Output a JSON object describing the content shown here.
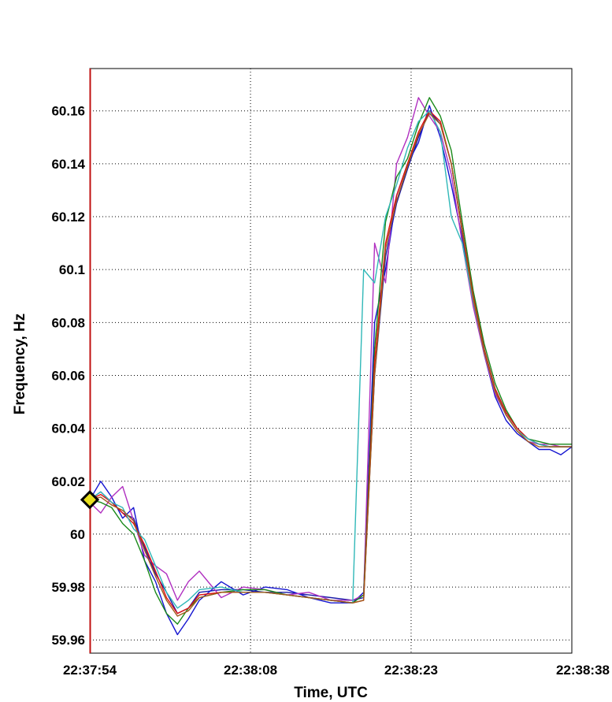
{
  "chart_data": {
    "type": "line",
    "title": "",
    "xlabel": "Time, UTC",
    "ylabel": "Frequency, Hz",
    "x_unit": "seconds after 22:37:54",
    "xlim": [
      0,
      44
    ],
    "ylim": [
      59.955,
      60.176
    ],
    "xticks": [
      {
        "value": 0,
        "label": "22:37:54"
      },
      {
        "value": 14.67,
        "label": "22:38:08"
      },
      {
        "value": 29.33,
        "label": "22:38:23"
      },
      {
        "value": 44,
        "label": "22:38:38"
      }
    ],
    "yticks": [
      59.96,
      59.98,
      60,
      60.02,
      60.04,
      60.06,
      60.08,
      60.1,
      60.12,
      60.14,
      60.16
    ],
    "ytick_labels": [
      "59.96",
      "59.98",
      "60",
      "60.02",
      "60.04",
      "60.06",
      "60.08",
      "60.1",
      "60.12",
      "60.14",
      "60.16"
    ],
    "grid": "dotted",
    "legend": "none",
    "series_colors": [
      "#1a1aa8",
      "#1414d0",
      "#b030c0",
      "#1a8a1a",
      "#e01010",
      "#30b8b8",
      "#a05a1a"
    ],
    "x": [
      0,
      1,
      2,
      3,
      4,
      5,
      6,
      7,
      8,
      9,
      10,
      12,
      14,
      16,
      18,
      20,
      22,
      24,
      25,
      26,
      27,
      28,
      29,
      30,
      31,
      32,
      33,
      34,
      35,
      36,
      37,
      38,
      39,
      40,
      41,
      42,
      43,
      44
    ],
    "series": [
      {
        "values": [
          60.013,
          60.016,
          60.012,
          60.008,
          60.006,
          59.995,
          59.985,
          59.978,
          59.97,
          59.972,
          59.978,
          59.979,
          59.979,
          59.978,
          59.978,
          59.977,
          59.976,
          59.975,
          59.976,
          60.06,
          60.105,
          60.125,
          60.138,
          60.15,
          60.16,
          60.155,
          60.14,
          60.115,
          60.09,
          60.07,
          60.055,
          60.046,
          60.04,
          60.036,
          60.034,
          60.033,
          60.033,
          60.033
        ]
      },
      {
        "values": [
          60.013,
          60.02,
          60.014,
          60.006,
          60.01,
          59.99,
          59.982,
          59.97,
          59.962,
          59.968,
          59.975,
          59.982,
          59.977,
          59.98,
          59.979,
          59.976,
          59.974,
          59.974,
          59.978,
          60.08,
          60.1,
          60.128,
          60.14,
          60.148,
          60.162,
          60.15,
          60.132,
          60.112,
          60.088,
          60.068,
          60.052,
          60.043,
          60.038,
          60.035,
          60.032,
          60.032,
          60.03,
          60.033
        ]
      },
      {
        "values": [
          60.012,
          60.008,
          60.014,
          60.018,
          60.005,
          59.992,
          59.988,
          59.985,
          59.975,
          59.982,
          59.986,
          59.976,
          59.98,
          59.979,
          59.977,
          59.978,
          59.975,
          59.975,
          59.977,
          60.11,
          60.095,
          60.14,
          60.15,
          60.165,
          60.158,
          60.152,
          60.136,
          60.11,
          60.086,
          60.068,
          60.053,
          60.045,
          60.039,
          60.035,
          60.034,
          60.034,
          60.033,
          60.033
        ]
      },
      {
        "values": [
          60.013,
          60.012,
          60.01,
          60.004,
          60.0,
          59.99,
          59.978,
          59.97,
          59.966,
          59.972,
          59.976,
          59.978,
          59.979,
          59.979,
          59.977,
          59.976,
          59.975,
          59.974,
          59.977,
          60.07,
          60.118,
          60.135,
          60.142,
          60.155,
          60.165,
          60.158,
          60.145,
          60.118,
          60.092,
          60.072,
          60.057,
          60.047,
          60.04,
          60.036,
          60.035,
          60.034,
          60.034,
          60.034
        ]
      },
      {
        "values": [
          60.013,
          60.015,
          60.012,
          60.008,
          60.004,
          59.996,
          59.986,
          59.976,
          59.97,
          59.972,
          59.977,
          59.978,
          59.978,
          59.978,
          59.977,
          59.976,
          59.975,
          59.974,
          59.975,
          60.065,
          60.11,
          60.128,
          60.14,
          60.152,
          60.16,
          60.156,
          60.14,
          60.115,
          60.09,
          60.07,
          60.055,
          60.046,
          60.04,
          60.036,
          60.034,
          60.033,
          60.033,
          60.033
        ]
      },
      {
        "values": [
          60.013,
          60.016,
          60.012,
          60.01,
          60.002,
          59.998,
          59.988,
          59.978,
          59.972,
          59.975,
          59.979,
          59.98,
          59.978,
          59.978,
          59.977,
          59.976,
          59.975,
          59.974,
          60.1,
          60.095,
          60.12,
          60.132,
          60.146,
          60.156,
          60.16,
          60.152,
          60.12,
          60.11,
          60.088,
          60.069,
          60.054,
          60.045,
          60.039,
          60.036,
          60.034,
          60.033,
          60.033,
          60.033
        ]
      },
      {
        "values": [
          60.013,
          60.014,
          60.011,
          60.009,
          60.005,
          59.994,
          59.984,
          59.975,
          59.969,
          59.971,
          59.976,
          59.978,
          59.978,
          59.978,
          59.977,
          59.976,
          59.975,
          59.974,
          59.975,
          60.06,
          60.108,
          60.126,
          60.139,
          60.151,
          60.159,
          60.155,
          60.14,
          60.114,
          60.089,
          60.069,
          60.054,
          60.045,
          60.039,
          60.035,
          60.033,
          60.033,
          60.033,
          60.033
        ]
      }
    ],
    "marker": {
      "x": 0,
      "y": 60.013,
      "shape": "diamond",
      "color": "#e8e020"
    }
  }
}
